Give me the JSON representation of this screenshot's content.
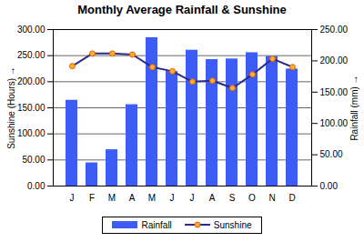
{
  "chart_data": {
    "type": "bar",
    "title": "Monthly Average Rainfall & Sunshine",
    "categories": [
      "J",
      "F",
      "M",
      "A",
      "M",
      "J",
      "J",
      "A",
      "S",
      "O",
      "N",
      "D"
    ],
    "ylabel": "Sunshine (Hours)",
    "y2label": "Rainfall (mm)",
    "series": [
      {
        "name": "Rainfall",
        "type": "bar",
        "axis": "y2",
        "color": "#3d5cf5",
        "values": [
          137,
          37,
          58,
          130,
          237,
          183,
          217,
          202,
          203,
          213,
          207,
          187
        ]
      },
      {
        "name": "Sunshine",
        "type": "line",
        "axis": "y",
        "color": "#2b2b8c",
        "marker": "circle",
        "values": [
          230,
          254,
          254,
          252,
          228,
          220,
          200,
          202,
          188,
          214,
          244,
          228
        ]
      }
    ],
    "ylim": [
      0,
      300
    ],
    "yticks": [
      {
        "value": 0,
        "label": "0.00"
      },
      {
        "value": 50,
        "label": "50.00"
      },
      {
        "value": 100,
        "label": "100.00"
      },
      {
        "value": 150,
        "label": "150.00"
      },
      {
        "value": 200,
        "label": "200.00"
      },
      {
        "value": 250,
        "label": "250.00"
      },
      {
        "value": 300,
        "label": "300.00"
      }
    ],
    "y2lim": [
      0,
      250
    ],
    "y2ticks": [
      {
        "value": 0,
        "label": "0.00"
      },
      {
        "value": 50,
        "label": "50.00"
      },
      {
        "value": 100,
        "label": "100.00"
      },
      {
        "value": 150,
        "label": "150.00"
      },
      {
        "value": 200,
        "label": "200.00"
      },
      {
        "value": 250,
        "label": "250.00"
      }
    ],
    "grid": true,
    "legend": "bottom"
  }
}
